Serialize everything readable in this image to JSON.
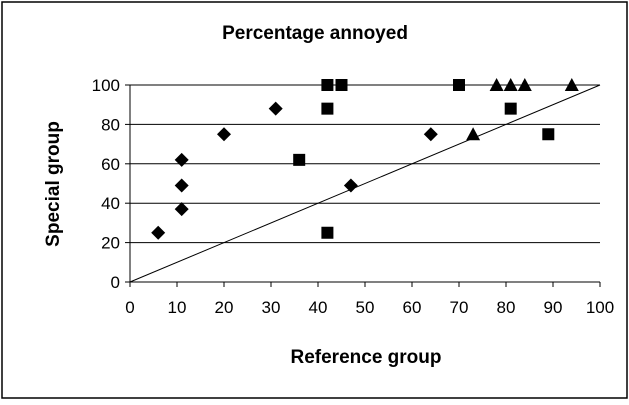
{
  "chart_data": {
    "type": "scatter",
    "title": "Percentage annoyed",
    "xlabel": "Reference group",
    "ylabel": "Special group",
    "xlim": [
      0,
      100
    ],
    "ylim": [
      0,
      100
    ],
    "x_ticks": [
      0,
      10,
      20,
      30,
      40,
      50,
      60,
      70,
      80,
      90,
      100
    ],
    "y_ticks": [
      0,
      20,
      40,
      60,
      80,
      100
    ],
    "grid": "horizontal",
    "reference_line": {
      "from": [
        0,
        0
      ],
      "to": [
        100,
        100
      ]
    },
    "series": [
      {
        "marker": "diamond",
        "color": "#000000",
        "points": [
          {
            "x": 6,
            "y": 25
          },
          {
            "x": 11,
            "y": 37
          },
          {
            "x": 11,
            "y": 49
          },
          {
            "x": 11,
            "y": 62
          },
          {
            "x": 20,
            "y": 75
          },
          {
            "x": 31,
            "y": 88
          },
          {
            "x": 47,
            "y": 49
          },
          {
            "x": 64,
            "y": 75
          }
        ]
      },
      {
        "marker": "square",
        "color": "#000000",
        "points": [
          {
            "x": 36,
            "y": 62
          },
          {
            "x": 42,
            "y": 25
          },
          {
            "x": 42,
            "y": 88
          },
          {
            "x": 42,
            "y": 100
          },
          {
            "x": 45,
            "y": 100
          },
          {
            "x": 70,
            "y": 100
          },
          {
            "x": 81,
            "y": 88
          },
          {
            "x": 89,
            "y": 75
          }
        ]
      },
      {
        "marker": "triangle",
        "color": "#000000",
        "points": [
          {
            "x": 73,
            "y": 75
          },
          {
            "x": 78,
            "y": 100
          },
          {
            "x": 81,
            "y": 100
          },
          {
            "x": 84,
            "y": 100
          },
          {
            "x": 94,
            "y": 100
          }
        ]
      }
    ]
  }
}
